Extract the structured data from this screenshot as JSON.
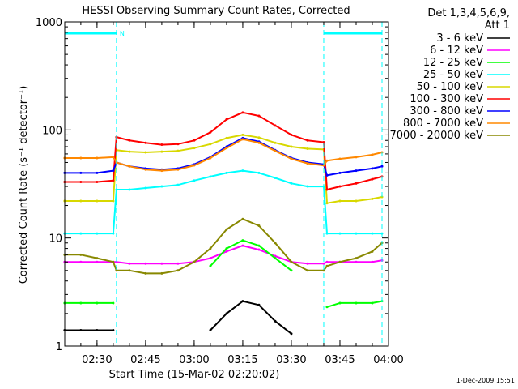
{
  "chart_data": {
    "type": "line",
    "title": "HESSI Observing Summary Count Rates, Corrected",
    "ylabel": "Corrected Count Rate (s⁻¹ detector⁻¹)",
    "xlabel": "Start Time (15-Mar-02 02:20:02)",
    "yscale": "log",
    "ylim": [
      1,
      1000
    ],
    "xlim": [
      "02:20:02",
      "04:00:00"
    ],
    "x_ticks": [
      "02:30",
      "02:45",
      "03:00",
      "03:15",
      "03:30",
      "03:45",
      "04:00"
    ],
    "y_ticks": [
      "1",
      "10",
      "100",
      "1000"
    ],
    "legend_header": [
      "Det 1,3,4,5,6,9,",
      "Att 1"
    ],
    "legend_placement": "right",
    "timestamp": "1-Dec-2009 15:51",
    "flag_label": "N",
    "x": [
      "02:20",
      "02:25",
      "02:30",
      "02:35",
      "02:36",
      "02:40",
      "02:45",
      "02:50",
      "02:55",
      "03:00",
      "03:05",
      "03:10",
      "03:15",
      "03:20",
      "03:25",
      "03:30",
      "03:35",
      "03:40",
      "03:41",
      "03:45",
      "03:50",
      "03:55",
      "03:58"
    ],
    "series": [
      {
        "name": "3 - 6 keV",
        "color": "#000000",
        "values": [
          1.4,
          1.4,
          1.4,
          1.4,
          null,
          null,
          null,
          null,
          null,
          null,
          1.4,
          2.0,
          2.6,
          2.4,
          1.7,
          1.3,
          null,
          null,
          null,
          null,
          null,
          null,
          null
        ]
      },
      {
        "name": "6 - 12 keV",
        "color": "#ff00ff",
        "values": [
          6,
          6,
          6,
          6,
          6,
          5.8,
          5.8,
          5.8,
          5.8,
          6,
          6.5,
          7.5,
          8.5,
          7.8,
          6.8,
          6,
          5.8,
          5.8,
          6,
          6,
          6,
          6,
          6.2
        ]
      },
      {
        "name": "12 - 25 keV",
        "color": "#00ff00",
        "values": [
          2.5,
          2.5,
          2.5,
          2.5,
          null,
          null,
          null,
          null,
          null,
          null,
          5.5,
          8,
          9.5,
          8.5,
          6.5,
          5,
          null,
          null,
          2.3,
          2.5,
          2.5,
          2.5,
          2.6
        ]
      },
      {
        "name": "25 - 50 keV",
        "color": "#00ffff",
        "values": [
          11,
          11,
          11,
          11,
          28,
          28,
          29,
          30,
          31,
          34,
          37,
          40,
          42,
          40,
          36,
          32,
          30,
          30,
          11,
          11,
          11,
          11,
          11
        ]
      },
      {
        "name": "50 - 100 keV",
        "color": "#d8d800",
        "values": [
          22,
          22,
          22,
          22,
          65,
          63,
          62,
          63,
          64,
          68,
          74,
          84,
          90,
          85,
          76,
          70,
          67,
          66,
          21,
          22,
          22,
          23,
          24
        ]
      },
      {
        "name": "100 - 300 keV",
        "color": "#ff0000",
        "values": [
          33,
          33,
          33,
          34,
          86,
          80,
          76,
          73,
          74,
          80,
          95,
          125,
          145,
          135,
          110,
          90,
          80,
          77,
          28,
          30,
          32,
          35,
          37
        ]
      },
      {
        "name": "300 - 800 keV",
        "color": "#0000ff",
        "values": [
          40,
          40,
          40,
          42,
          50,
          46,
          44,
          43,
          44,
          48,
          56,
          70,
          84,
          78,
          65,
          55,
          50,
          48,
          38,
          40,
          42,
          44,
          46
        ]
      },
      {
        "name": "800 - 7000 keV",
        "color": "#ff8800",
        "values": [
          55,
          55,
          55,
          56,
          50,
          46,
          43,
          42,
          43,
          47,
          55,
          68,
          82,
          76,
          64,
          54,
          49,
          47,
          52,
          54,
          56,
          59,
          62
        ]
      },
      {
        "name": "7000 - 20000 keV",
        "color": "#888800",
        "values": [
          7,
          7,
          6.5,
          6,
          5,
          5,
          4.7,
          4.7,
          5,
          6,
          8,
          12,
          15,
          13,
          9,
          6,
          5,
          5,
          5.5,
          6,
          6.5,
          7.5,
          9
        ]
      }
    ]
  }
}
